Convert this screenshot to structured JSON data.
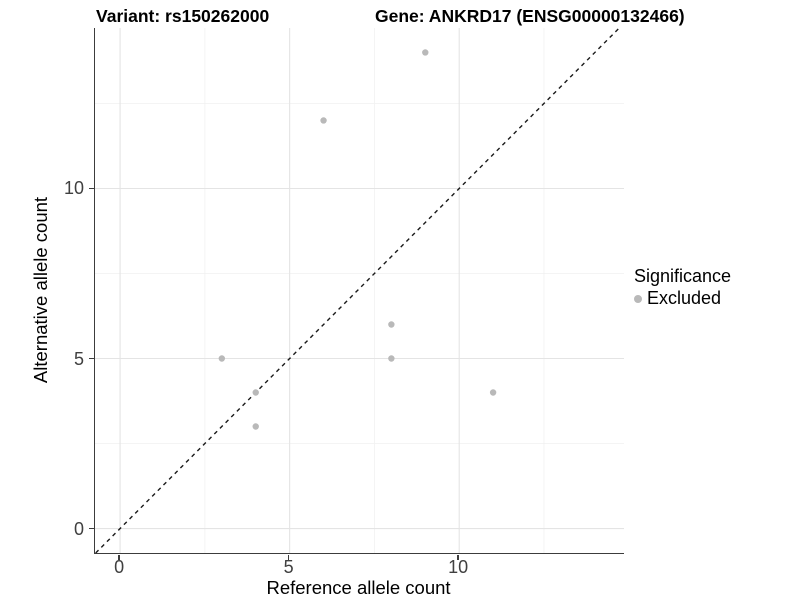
{
  "chart_data": {
    "type": "scatter",
    "title_left": "Variant: rs150262000",
    "title_right": "Gene: ANKRD17 (ENSG00000132466)",
    "xlabel": "Reference allele count",
    "ylabel": "Alternative allele count",
    "xlim": [
      -0.74,
      14.86
    ],
    "ylim": [
      -0.72,
      14.72
    ],
    "x_ticks": [
      0,
      5,
      10
    ],
    "y_ticks": [
      0,
      5,
      10
    ],
    "x_minor": [
      2.5,
      7.5,
      12.5
    ],
    "y_minor": [
      2.5,
      7.5,
      12.5
    ],
    "grid": true,
    "legend_position": "right",
    "identity_line": {
      "intercept": 0,
      "slope": 1,
      "style": "dashed",
      "color": "#1a1a1a"
    },
    "series": [
      {
        "name": "Excluded",
        "color": "#b9b9b9",
        "points": [
          [
            3,
            5
          ],
          [
            4,
            3
          ],
          [
            4,
            4
          ],
          [
            6,
            12
          ],
          [
            8,
            5
          ],
          [
            8,
            6
          ],
          [
            9,
            14
          ],
          [
            11,
            4
          ]
        ]
      }
    ],
    "legend": {
      "title": "Significance",
      "items": [
        {
          "label": "Excluded",
          "color": "#b9b9b9"
        }
      ]
    },
    "colors": {
      "major_grid": "#e4e4e4",
      "minor_grid": "#f1f1f1",
      "axis_line": "#3c3c3c",
      "point": "#b9b9b9"
    }
  }
}
